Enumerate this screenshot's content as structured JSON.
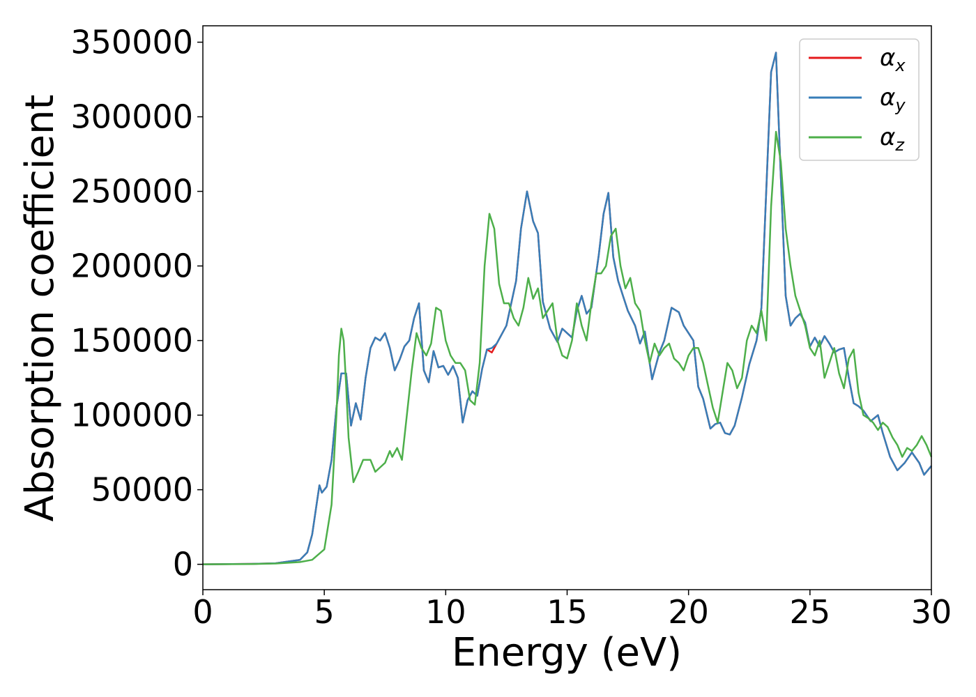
{
  "chart_data": {
    "type": "line",
    "xlabel": "Energy (eV)",
    "ylabel": "Absorption coefficient",
    "xlim": [
      0,
      30
    ],
    "ylim": [
      -17000,
      361000
    ],
    "xticks": [
      0,
      5,
      10,
      15,
      20,
      25,
      30
    ],
    "yticks": [
      0,
      50000,
      100000,
      150000,
      200000,
      250000,
      300000,
      350000
    ],
    "grid": false,
    "legend_position": "top-right",
    "series": [
      {
        "name": "αx",
        "legend_base": "α",
        "legend_sub": "x",
        "color": "#e41a1c",
        "x": [
          0,
          2,
          3,
          4,
          4.3,
          4.5,
          4.7,
          4.8,
          4.9,
          5.1,
          5.3,
          5.5,
          5.7,
          5.9,
          6.1,
          6.3,
          6.5,
          6.7,
          6.9,
          7.1,
          7.3,
          7.5,
          7.7,
          7.9,
          8.1,
          8.3,
          8.5,
          8.7,
          8.9,
          9.1,
          9.3,
          9.5,
          9.7,
          9.9,
          10.1,
          10.3,
          10.5,
          10.7,
          10.9,
          11.1,
          11.3,
          11.5,
          11.7,
          11.9,
          12.1,
          12.5,
          12.9,
          13.1,
          13.35,
          13.6,
          13.8,
          14.0,
          14.3,
          14.6,
          14.8,
          15.0,
          15.2,
          15.4,
          15.6,
          15.8,
          16.0,
          16.3,
          16.5,
          16.7,
          16.9,
          17.1,
          17.3,
          17.5,
          17.8,
          18.0,
          18.2,
          18.5,
          18.8,
          19.0,
          19.3,
          19.6,
          19.8,
          20.0,
          20.2,
          20.4,
          20.6,
          20.9,
          21.1,
          21.3,
          21.5,
          21.7,
          21.9,
          22.2,
          22.5,
          22.8,
          23.0,
          23.2,
          23.4,
          23.6,
          23.8,
          24.0,
          24.2,
          24.4,
          24.6,
          24.8,
          25.0,
          25.2,
          25.4,
          25.6,
          25.8,
          26.0,
          26.2,
          26.4,
          26.6,
          26.8,
          27.0,
          27.2,
          27.5,
          27.8,
          28.0,
          28.3,
          28.6,
          28.9,
          29.2,
          29.5,
          29.7,
          30.0
        ],
        "y": [
          0,
          300,
          700,
          3000,
          8000,
          20000,
          42000,
          53000,
          48000,
          52000,
          70000,
          105000,
          128000,
          128000,
          93000,
          108000,
          97000,
          125000,
          145000,
          152000,
          150000,
          155000,
          145000,
          130000,
          137000,
          146000,
          150000,
          165000,
          175000,
          130000,
          122000,
          143000,
          132000,
          133000,
          127000,
          133000,
          125000,
          95000,
          110000,
          116000,
          113000,
          131000,
          144000,
          142000,
          148000,
          160000,
          190000,
          225000,
          250000,
          230000,
          222000,
          176000,
          158000,
          149000,
          158000,
          155000,
          152000,
          170000,
          180000,
          168000,
          172000,
          207000,
          235000,
          249000,
          206000,
          190000,
          180000,
          170000,
          160000,
          148000,
          156000,
          124000,
          142000,
          150000,
          172000,
          169000,
          160000,
          155000,
          150000,
          119000,
          111000,
          91000,
          94000,
          95000,
          88000,
          87000,
          93000,
          112000,
          134000,
          150000,
          172000,
          250000,
          330000,
          343000,
          260000,
          180000,
          160000,
          165000,
          168000,
          162000,
          146000,
          152000,
          146000,
          153000,
          148000,
          142000,
          144000,
          145000,
          125000,
          108000,
          106000,
          103000,
          96000,
          100000,
          88000,
          72000,
          63000,
          68000,
          75000,
          68000,
          60000,
          66000
        ]
      },
      {
        "name": "αy",
        "legend_base": "α",
        "legend_sub": "y",
        "color": "#377eb8",
        "x": [
          0,
          2,
          3,
          4,
          4.3,
          4.5,
          4.7,
          4.8,
          4.9,
          5.1,
          5.3,
          5.5,
          5.7,
          5.9,
          6.1,
          6.3,
          6.5,
          6.7,
          6.9,
          7.1,
          7.3,
          7.5,
          7.7,
          7.9,
          8.1,
          8.3,
          8.5,
          8.7,
          8.9,
          9.1,
          9.3,
          9.5,
          9.7,
          9.9,
          10.1,
          10.3,
          10.5,
          10.7,
          10.9,
          11.1,
          11.3,
          11.5,
          11.7,
          11.9,
          12.1,
          12.5,
          12.9,
          13.1,
          13.35,
          13.6,
          13.8,
          14.0,
          14.3,
          14.6,
          14.8,
          15.0,
          15.2,
          15.4,
          15.6,
          15.8,
          16.0,
          16.3,
          16.5,
          16.7,
          16.9,
          17.1,
          17.3,
          17.5,
          17.8,
          18.0,
          18.2,
          18.5,
          18.8,
          19.0,
          19.3,
          19.6,
          19.8,
          20.0,
          20.2,
          20.4,
          20.6,
          20.9,
          21.1,
          21.3,
          21.5,
          21.7,
          21.9,
          22.2,
          22.5,
          22.8,
          23.0,
          23.2,
          23.4,
          23.6,
          23.8,
          24.0,
          24.2,
          24.4,
          24.6,
          24.8,
          25.0,
          25.2,
          25.4,
          25.6,
          25.8,
          26.0,
          26.2,
          26.4,
          26.6,
          26.8,
          27.0,
          27.2,
          27.5,
          27.8,
          28.0,
          28.3,
          28.6,
          28.9,
          29.2,
          29.5,
          29.7,
          30.0
        ],
        "y": [
          0,
          300,
          700,
          3000,
          8000,
          20000,
          42000,
          53000,
          48000,
          52000,
          70000,
          105000,
          128000,
          128000,
          93000,
          108000,
          97000,
          125000,
          145000,
          152000,
          150000,
          155000,
          145000,
          130000,
          137000,
          146000,
          150000,
          165000,
          175000,
          130000,
          122000,
          143000,
          132000,
          133000,
          127000,
          133000,
          125000,
          95000,
          110000,
          116000,
          113000,
          131000,
          144000,
          145000,
          148000,
          160000,
          190000,
          225000,
          250000,
          230000,
          222000,
          176000,
          158000,
          149000,
          158000,
          155000,
          152000,
          170000,
          180000,
          168000,
          172000,
          207000,
          235000,
          249000,
          206000,
          190000,
          180000,
          170000,
          160000,
          148000,
          156000,
          124000,
          142000,
          150000,
          172000,
          169000,
          160000,
          155000,
          150000,
          119000,
          111000,
          91000,
          94000,
          95000,
          88000,
          87000,
          93000,
          112000,
          134000,
          150000,
          172000,
          250000,
          330000,
          343000,
          260000,
          180000,
          160000,
          165000,
          168000,
          162000,
          146000,
          152000,
          146000,
          153000,
          148000,
          142000,
          144000,
          145000,
          125000,
          108000,
          106000,
          103000,
          96000,
          100000,
          88000,
          72000,
          63000,
          68000,
          75000,
          68000,
          60000,
          66000
        ]
      },
      {
        "name": "αz",
        "legend_base": "α",
        "legend_sub": "z",
        "color": "#4daf4a",
        "x": [
          0,
          2,
          3,
          4,
          4.5,
          5.0,
          5.3,
          5.5,
          5.6,
          5.7,
          5.8,
          5.9,
          6.0,
          6.2,
          6.4,
          6.6,
          6.9,
          7.1,
          7.3,
          7.5,
          7.7,
          7.8,
          7.9,
          8.0,
          8.2,
          8.4,
          8.6,
          8.8,
          9.0,
          9.2,
          9.4,
          9.6,
          9.8,
          10.0,
          10.2,
          10.4,
          10.6,
          10.8,
          11.0,
          11.2,
          11.4,
          11.6,
          11.8,
          12.0,
          12.2,
          12.4,
          12.6,
          12.8,
          13.0,
          13.2,
          13.4,
          13.6,
          13.8,
          14.0,
          14.2,
          14.4,
          14.6,
          14.8,
          15.0,
          15.2,
          15.4,
          15.6,
          15.8,
          16.0,
          16.2,
          16.4,
          16.6,
          16.8,
          17.0,
          17.2,
          17.4,
          17.6,
          17.8,
          18.0,
          18.2,
          18.4,
          18.6,
          18.8,
          19.0,
          19.2,
          19.4,
          19.6,
          19.8,
          20.0,
          20.2,
          20.4,
          20.6,
          20.8,
          21.0,
          21.2,
          21.4,
          21.6,
          21.8,
          22.0,
          22.2,
          22.4,
          22.6,
          22.8,
          23.0,
          23.2,
          23.4,
          23.6,
          23.8,
          24.0,
          24.2,
          24.4,
          24.6,
          24.8,
          25.0,
          25.2,
          25.4,
          25.6,
          25.8,
          26.0,
          26.2,
          26.4,
          26.6,
          26.8,
          27.0,
          27.2,
          27.4,
          27.6,
          27.8,
          28.0,
          28.2,
          28.4,
          28.6,
          28.8,
          29.0,
          29.2,
          29.4,
          29.6,
          29.8,
          30.0
        ],
        "y": [
          0,
          200,
          500,
          1500,
          3000,
          10000,
          40000,
          100000,
          140000,
          158000,
          150000,
          120000,
          85000,
          55000,
          62000,
          70000,
          70000,
          62000,
          65000,
          68000,
          76000,
          72000,
          75000,
          78000,
          70000,
          100000,
          130000,
          155000,
          145000,
          140000,
          148000,
          172000,
          170000,
          150000,
          140000,
          135000,
          135000,
          130000,
          110000,
          107000,
          135000,
          200000,
          235000,
          225000,
          188000,
          175000,
          175000,
          165000,
          160000,
          172000,
          192000,
          178000,
          185000,
          165000,
          170000,
          175000,
          150000,
          140000,
          138000,
          150000,
          175000,
          160000,
          150000,
          175000,
          195000,
          195000,
          200000,
          220000,
          225000,
          200000,
          185000,
          192000,
          175000,
          170000,
          150000,
          135000,
          148000,
          140000,
          145000,
          148000,
          138000,
          135000,
          130000,
          140000,
          145000,
          145000,
          135000,
          120000,
          105000,
          95000,
          115000,
          135000,
          130000,
          118000,
          125000,
          150000,
          160000,
          155000,
          170000,
          150000,
          240000,
          290000,
          270000,
          225000,
          200000,
          180000,
          170000,
          160000,
          145000,
          140000,
          150000,
          125000,
          135000,
          145000,
          128000,
          118000,
          138000,
          144000,
          115000,
          100000,
          98000,
          95000,
          90000,
          95000,
          92000,
          85000,
          80000,
          72000,
          78000,
          76000,
          80000,
          86000,
          80000,
          72000
        ]
      }
    ]
  }
}
